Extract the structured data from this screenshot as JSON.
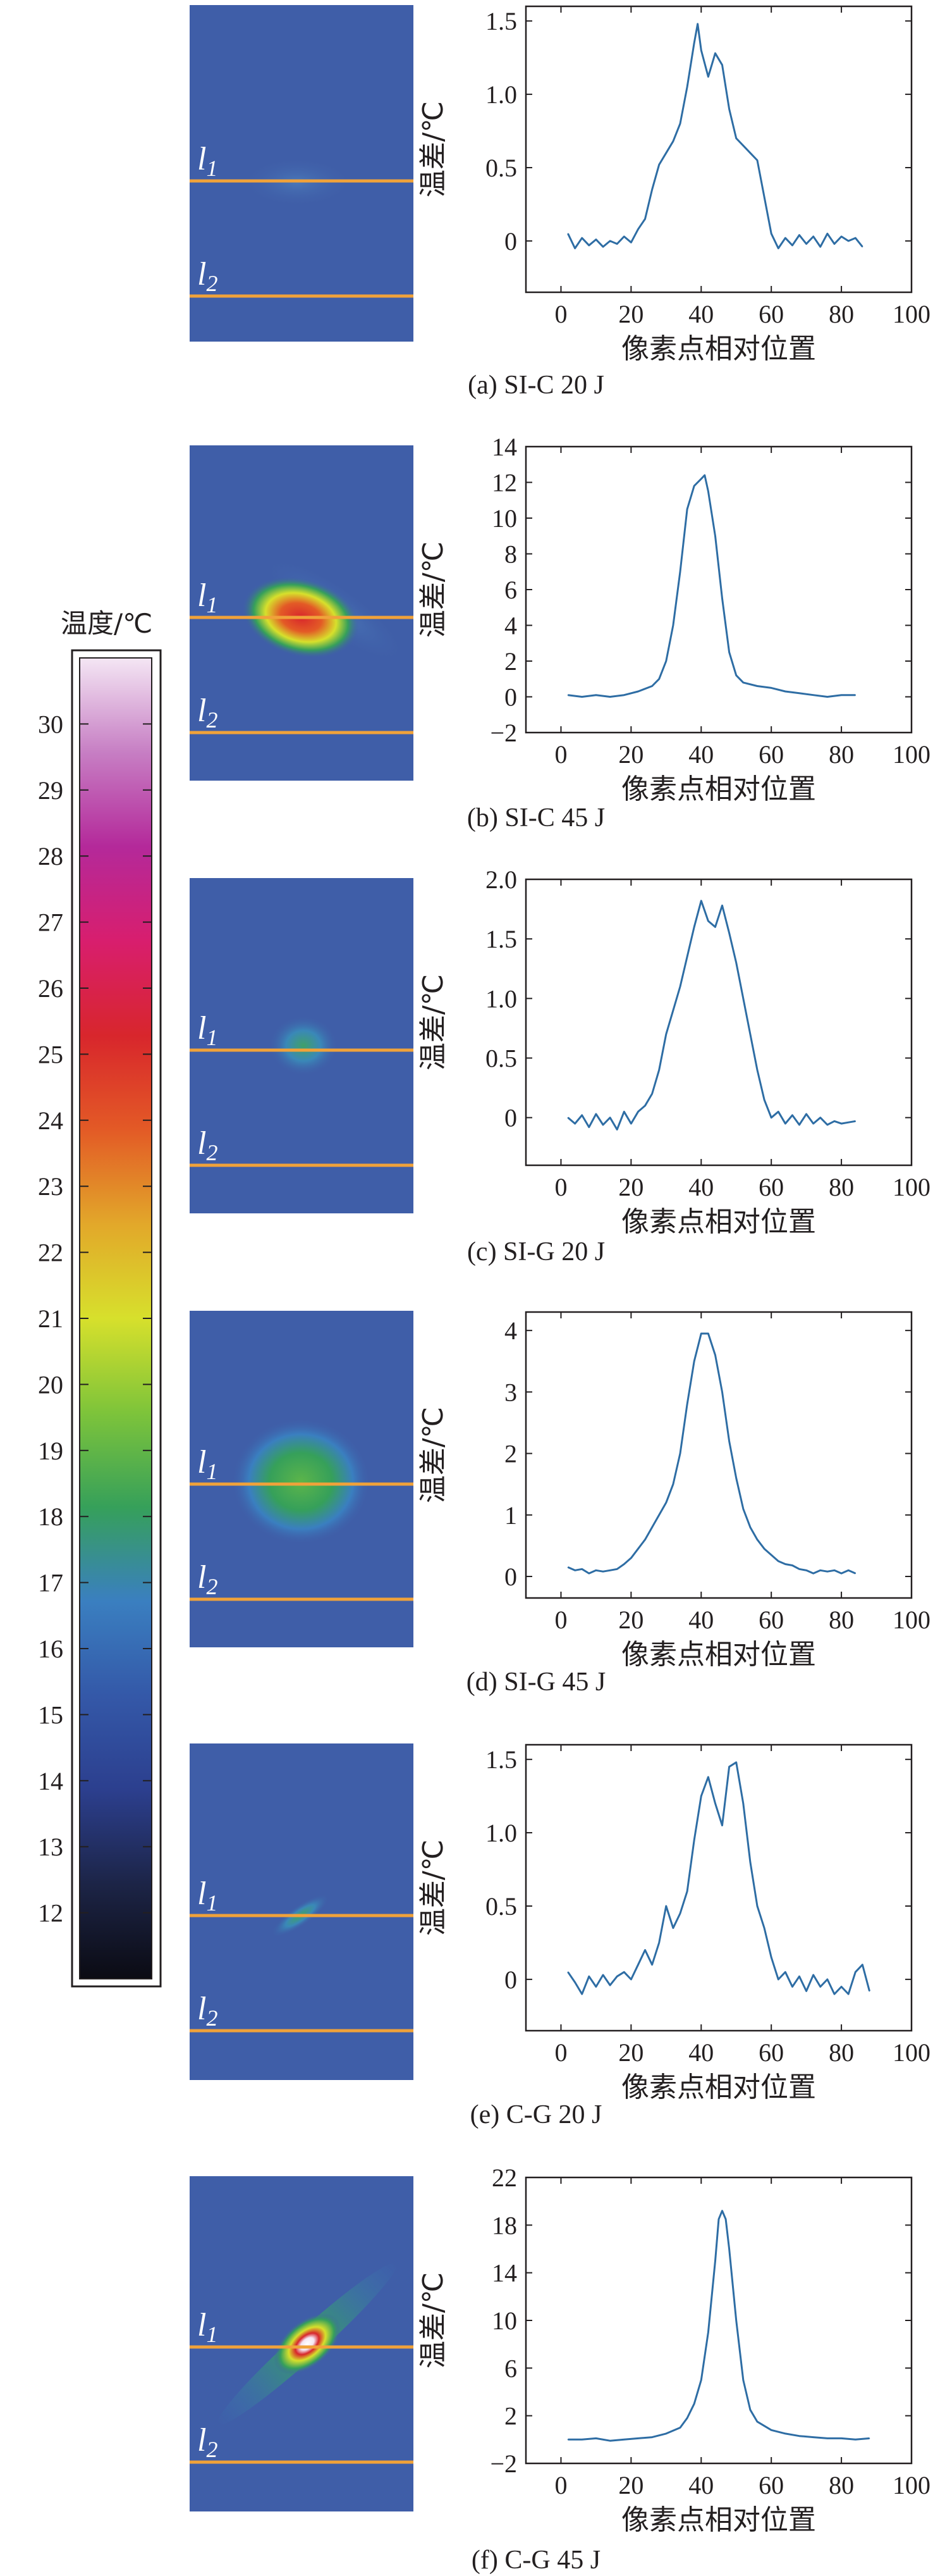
{
  "colorbar": {
    "title": "温度/℃",
    "ticks": [
      30,
      29,
      28,
      27,
      26,
      25,
      24,
      23,
      22,
      21,
      20,
      19,
      18,
      17,
      16,
      15,
      14,
      13,
      12
    ],
    "range": [
      11,
      31
    ],
    "colors": [
      "#0b0b13",
      "#1c2446",
      "#2c3f8e",
      "#3458a8",
      "#3a7fc0",
      "#36a05a",
      "#7ec43a",
      "#d7e02c",
      "#e2a82a",
      "#e35a26",
      "#d8262c",
      "#d81e6e",
      "#b4299a",
      "#c77fc4",
      "#f4e6f4"
    ]
  },
  "line_labels": {
    "l1": "l",
    "l1_sub": "1",
    "l2": "l",
    "l2_sub": "2"
  },
  "thermal_colors": {
    "background": "#3f5ea8",
    "line": "#f0a23a"
  },
  "chart_data": [
    {
      "type": "line",
      "caption": "(a) SI-C 20 J",
      "xlabel": "像素点相对位置",
      "ylabel": "温差/℃",
      "xlim": [
        -10,
        100
      ],
      "ylim": [
        -0.35,
        1.6
      ],
      "xticks": [
        0,
        20,
        40,
        60,
        80,
        100
      ],
      "yticks": [
        0,
        0.5,
        1.0,
        1.5
      ],
      "ytick_labels": [
        "0",
        "0.5",
        "1.0",
        "1.5"
      ],
      "x": [
        2,
        4,
        6,
        8,
        10,
        12,
        14,
        16,
        18,
        20,
        22,
        24,
        26,
        28,
        30,
        32,
        34,
        36,
        38,
        39,
        40,
        42,
        44,
        46,
        48,
        50,
        52,
        54,
        56,
        58,
        60,
        62,
        64,
        66,
        68,
        70,
        72,
        74,
        76,
        78,
        80,
        82,
        84,
        86
      ],
      "y": [
        0.05,
        -0.05,
        0.02,
        -0.03,
        0.01,
        -0.04,
        0.0,
        -0.02,
        0.03,
        -0.01,
        0.08,
        0.15,
        0.35,
        0.52,
        0.6,
        0.68,
        0.8,
        1.05,
        1.35,
        1.48,
        1.3,
        1.12,
        1.28,
        1.2,
        0.9,
        0.7,
        0.65,
        0.6,
        0.55,
        0.3,
        0.05,
        -0.05,
        0.02,
        -0.03,
        0.04,
        -0.02,
        0.03,
        -0.04,
        0.05,
        -0.02,
        0.03,
        0.0,
        0.02,
        -0.04
      ]
    },
    {
      "type": "line",
      "caption": "(b) SI-C 45 J",
      "xlabel": "像素点相对位置",
      "ylabel": "温差/℃",
      "xlim": [
        -10,
        100
      ],
      "ylim": [
        -2,
        14
      ],
      "xticks": [
        0,
        20,
        40,
        60,
        80,
        100
      ],
      "yticks": [
        -2,
        0,
        2,
        4,
        6,
        8,
        10,
        12,
        14
      ],
      "ytick_labels": [
        "−2",
        "0",
        "2",
        "4",
        "6",
        "8",
        "10",
        "12",
        "14"
      ],
      "x": [
        2,
        6,
        10,
        14,
        18,
        22,
        26,
        28,
        30,
        32,
        34,
        36,
        38,
        40,
        41,
        42,
        44,
        46,
        48,
        50,
        52,
        56,
        60,
        64,
        68,
        72,
        76,
        80,
        84
      ],
      "y": [
        0.1,
        0.0,
        0.1,
        0.0,
        0.1,
        0.3,
        0.6,
        1.0,
        2.0,
        4.0,
        7.0,
        10.5,
        11.8,
        12.2,
        12.4,
        11.5,
        9.0,
        5.5,
        2.5,
        1.2,
        0.8,
        0.6,
        0.5,
        0.3,
        0.2,
        0.1,
        0.0,
        0.1,
        0.1
      ]
    },
    {
      "type": "line",
      "caption": "(c) SI-G 20 J",
      "xlabel": "像素点相对位置",
      "ylabel": "温差/℃",
      "xlim": [
        -10,
        100
      ],
      "ylim": [
        -0.4,
        2.0
      ],
      "xticks": [
        0,
        20,
        40,
        60,
        80,
        100
      ],
      "yticks": [
        0,
        0.5,
        1.0,
        1.5,
        2.0
      ],
      "ytick_labels": [
        "0",
        "0.5",
        "1.0",
        "1.5",
        "2.0"
      ],
      "x": [
        2,
        4,
        6,
        8,
        10,
        12,
        14,
        16,
        18,
        20,
        22,
        24,
        26,
        28,
        30,
        32,
        34,
        36,
        38,
        40,
        42,
        44,
        46,
        48,
        50,
        52,
        54,
        56,
        58,
        60,
        62,
        64,
        66,
        68,
        70,
        72,
        74,
        76,
        78,
        80,
        82,
        84
      ],
      "y": [
        0.0,
        -0.05,
        0.02,
        -0.08,
        0.03,
        -0.06,
        0.0,
        -0.1,
        0.05,
        -0.05,
        0.05,
        0.1,
        0.2,
        0.4,
        0.7,
        0.9,
        1.1,
        1.35,
        1.6,
        1.82,
        1.65,
        1.6,
        1.78,
        1.55,
        1.3,
        1.0,
        0.7,
        0.4,
        0.15,
        0.0,
        0.05,
        -0.05,
        0.02,
        -0.06,
        0.03,
        -0.05,
        0.0,
        -0.06,
        -0.03,
        -0.05,
        -0.04,
        -0.03
      ]
    },
    {
      "type": "line",
      "caption": "(d) SI-G 45 J",
      "xlabel": "像素点相对位置",
      "ylabel": "温差/℃",
      "xlim": [
        -10,
        100
      ],
      "ylim": [
        -0.35,
        4.3
      ],
      "xticks": [
        0,
        20,
        40,
        60,
        80,
        100
      ],
      "yticks": [
        0,
        1,
        2,
        3,
        4
      ],
      "ytick_labels": [
        "0",
        "1",
        "2",
        "3",
        "4"
      ],
      "x": [
        2,
        4,
        6,
        8,
        10,
        12,
        14,
        16,
        18,
        20,
        22,
        24,
        26,
        28,
        30,
        32,
        34,
        36,
        38,
        40,
        42,
        44,
        46,
        48,
        50,
        52,
        54,
        56,
        58,
        60,
        62,
        64,
        66,
        68,
        70,
        72,
        74,
        76,
        78,
        80,
        82,
        84
      ],
      "y": [
        0.15,
        0.1,
        0.12,
        0.05,
        0.1,
        0.08,
        0.1,
        0.12,
        0.2,
        0.3,
        0.45,
        0.6,
        0.8,
        1.0,
        1.2,
        1.5,
        2.0,
        2.8,
        3.5,
        3.95,
        3.95,
        3.6,
        3.0,
        2.2,
        1.6,
        1.1,
        0.8,
        0.6,
        0.45,
        0.35,
        0.25,
        0.2,
        0.18,
        0.12,
        0.1,
        0.05,
        0.1,
        0.08,
        0.1,
        0.05,
        0.1,
        0.05
      ]
    },
    {
      "type": "line",
      "caption": "(e) C-G 20 J",
      "xlabel": "像素点相对位置",
      "ylabel": "温差/℃",
      "xlim": [
        -10,
        100
      ],
      "ylim": [
        -0.35,
        1.6
      ],
      "xticks": [
        0,
        20,
        40,
        60,
        80,
        100
      ],
      "yticks": [
        0,
        0.5,
        1.0,
        1.5
      ],
      "ytick_labels": [
        "0",
        "0.5",
        "1.0",
        "1.5"
      ],
      "x": [
        2,
        4,
        6,
        8,
        10,
        12,
        14,
        16,
        18,
        20,
        22,
        24,
        26,
        28,
        30,
        32,
        34,
        36,
        38,
        40,
        42,
        44,
        46,
        48,
        50,
        52,
        54,
        56,
        58,
        60,
        62,
        64,
        66,
        68,
        70,
        72,
        74,
        76,
        78,
        80,
        82,
        84,
        86,
        88
      ],
      "y": [
        0.05,
        -0.02,
        -0.1,
        0.02,
        -0.05,
        0.03,
        -0.04,
        0.02,
        0.05,
        0.0,
        0.1,
        0.2,
        0.1,
        0.25,
        0.5,
        0.35,
        0.45,
        0.6,
        0.95,
        1.25,
        1.38,
        1.2,
        1.05,
        1.45,
        1.48,
        1.2,
        0.8,
        0.5,
        0.35,
        0.15,
        0.0,
        0.05,
        -0.05,
        0.02,
        -0.08,
        0.03,
        -0.05,
        0.0,
        -0.1,
        -0.05,
        -0.1,
        0.05,
        0.1,
        -0.08
      ]
    },
    {
      "type": "line",
      "caption": "(f) C-G 45 J",
      "xlabel": "像素点相对位置",
      "ylabel": "温差/℃",
      "xlim": [
        -10,
        100
      ],
      "ylim": [
        -2,
        22
      ],
      "xticks": [
        0,
        20,
        40,
        60,
        80,
        100
      ],
      "yticks": [
        -2,
        2,
        6,
        10,
        14,
        18,
        22
      ],
      "ytick_labels": [
        "−2",
        "2",
        "6",
        "10",
        "14",
        "18",
        "22"
      ],
      "x": [
        2,
        6,
        10,
        14,
        18,
        22,
        26,
        30,
        34,
        36,
        38,
        40,
        42,
        44,
        45,
        46,
        47,
        48,
        50,
        52,
        54,
        56,
        60,
        64,
        68,
        72,
        76,
        80,
        84,
        88
      ],
      "y": [
        0.0,
        0.0,
        0.1,
        -0.1,
        0.0,
        0.1,
        0.2,
        0.5,
        1.0,
        1.8,
        3.0,
        5.0,
        9.0,
        15.0,
        18.5,
        19.2,
        18.5,
        16.0,
        10.0,
        5.0,
        2.5,
        1.5,
        0.8,
        0.5,
        0.3,
        0.2,
        0.1,
        0.1,
        0.0,
        0.1
      ]
    }
  ]
}
